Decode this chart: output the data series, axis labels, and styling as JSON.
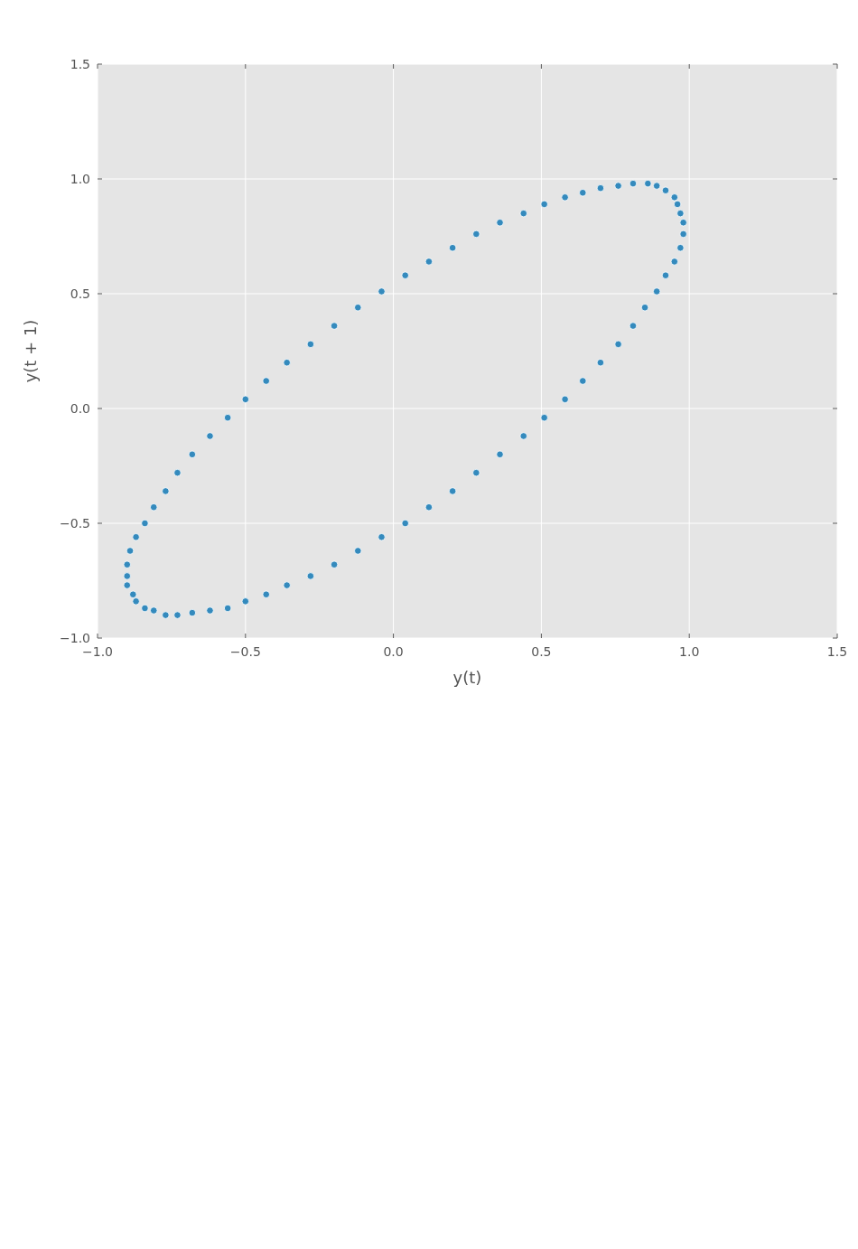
{
  "chart_data": {
    "type": "scatter",
    "xlabel": "y(t)",
    "ylabel": "y(t + 1)",
    "marker": "circle",
    "grid": true,
    "xlim": [
      -1.0,
      1.5
    ],
    "ylim": [
      -1.0,
      1.5
    ],
    "xticks": [
      {
        "value": -1.0,
        "label": "−1.0"
      },
      {
        "value": -0.5,
        "label": "−0.5"
      },
      {
        "value": 0.0,
        "label": "0.0"
      },
      {
        "value": 0.5,
        "label": "0.5"
      },
      {
        "value": 1.0,
        "label": "1.0"
      },
      {
        "value": 1.5,
        "label": "1.5"
      }
    ],
    "yticks": [
      {
        "value": -1.0,
        "label": "−1.0"
      },
      {
        "value": -0.5,
        "label": "−0.5"
      },
      {
        "value": 0.0,
        "label": "0.0"
      },
      {
        "value": 0.5,
        "label": "0.5"
      },
      {
        "value": 1.0,
        "label": "1.0"
      },
      {
        "value": 1.5,
        "label": "1.5"
      }
    ],
    "series": [
      {
        "color": "#348abd",
        "x": [
          0.98,
          0.97,
          0.96,
          0.95,
          0.92,
          0.89,
          0.86,
          0.81,
          0.76,
          0.7,
          0.64,
          0.58,
          0.51,
          0.44,
          0.36,
          0.28,
          0.2,
          0.12,
          0.04,
          -0.04,
          -0.12,
          -0.2,
          -0.28,
          -0.36,
          -0.43,
          -0.5,
          -0.56,
          -0.62,
          -0.68,
          -0.73,
          -0.77,
          -0.81,
          -0.84,
          -0.87,
          -0.89,
          -0.9,
          -0.9,
          -0.9,
          -0.88,
          -0.87,
          -0.84,
          -0.81,
          -0.77,
          -0.73,
          -0.68,
          -0.62,
          -0.56,
          -0.5,
          -0.43,
          -0.36,
          -0.28,
          -0.2,
          -0.12,
          -0.04,
          0.04,
          0.12,
          0.2,
          0.28,
          0.36,
          0.44,
          0.51,
          0.58,
          0.64,
          0.7,
          0.76,
          0.81,
          0.85,
          0.89,
          0.92,
          0.95,
          0.97,
          0.98
        ],
        "values": [
          0.81,
          0.85,
          0.89,
          0.92,
          0.95,
          0.97,
          0.98,
          0.98,
          0.97,
          0.96,
          0.94,
          0.92,
          0.89,
          0.85,
          0.81,
          0.76,
          0.7,
          0.64,
          0.58,
          0.51,
          0.44,
          0.36,
          0.28,
          0.2,
          0.12,
          0.04,
          -0.04,
          -0.12,
          -0.2,
          -0.28,
          -0.36,
          -0.43,
          -0.5,
          -0.56,
          -0.62,
          -0.68,
          -0.73,
          -0.77,
          -0.81,
          -0.84,
          -0.87,
          -0.88,
          -0.9,
          -0.9,
          -0.89,
          -0.88,
          -0.87,
          -0.84,
          -0.81,
          -0.77,
          -0.73,
          -0.68,
          -0.62,
          -0.56,
          -0.5,
          -0.43,
          -0.36,
          -0.28,
          -0.2,
          -0.12,
          -0.04,
          0.04,
          0.12,
          0.2,
          0.28,
          0.36,
          0.44,
          0.51,
          0.58,
          0.64,
          0.7,
          0.76
        ]
      }
    ]
  }
}
